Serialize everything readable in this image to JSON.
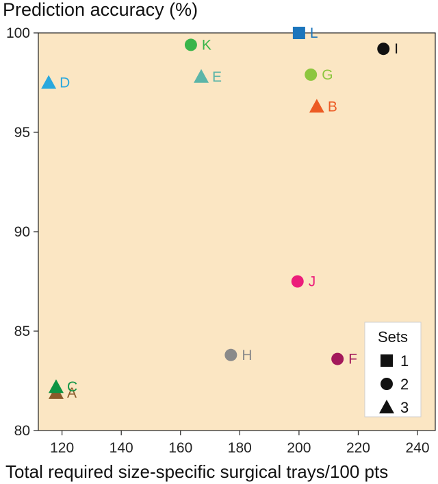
{
  "chart_data": {
    "type": "scatter",
    "ylabel": "Prediction accuracy (%)",
    "xlabel": "Total required size-specific surgical trays/100 pts",
    "xlim": [
      112,
      246
    ],
    "ylim": [
      80,
      100
    ],
    "xticks": [
      "120",
      "140",
      "160",
      "180",
      "200",
      "220",
      "240"
    ],
    "xtick_values": [
      120,
      140,
      160,
      180,
      200,
      220,
      240
    ],
    "yticks": [
      "80",
      "85",
      "90",
      "95",
      "100"
    ],
    "ytick_values": [
      80,
      85,
      90,
      95,
      100
    ],
    "background_color": "#fbe6c3",
    "grid": false,
    "legend": {
      "title": "Sets",
      "position": "bottom-right",
      "entries": [
        {
          "label": "1",
          "shape": "square"
        },
        {
          "label": "2",
          "shape": "circle"
        },
        {
          "label": "3",
          "shape": "triangle"
        }
      ]
    },
    "points": [
      {
        "label": "A",
        "x": 118,
        "y": 81.9,
        "set": 3,
        "shape": "triangle",
        "color": "#8b5a2b"
      },
      {
        "label": "B",
        "x": 206,
        "y": 96.3,
        "set": 3,
        "shape": "triangle",
        "color": "#ec5b24"
      },
      {
        "label": "C",
        "x": 118,
        "y": 82.2,
        "set": 3,
        "shape": "triangle",
        "color": "#0e9444"
      },
      {
        "label": "D",
        "x": 115.5,
        "y": 97.5,
        "set": 3,
        "shape": "triangle",
        "color": "#2aa8de"
      },
      {
        "label": "E",
        "x": 167,
        "y": 97.8,
        "set": 3,
        "shape": "triangle",
        "color": "#5bb5a8"
      },
      {
        "label": "F",
        "x": 213,
        "y": 83.6,
        "set": 2,
        "shape": "circle",
        "color": "#a3195b"
      },
      {
        "label": "G",
        "x": 204,
        "y": 97.9,
        "set": 2,
        "shape": "circle",
        "color": "#8dc63f"
      },
      {
        "label": "H",
        "x": 177,
        "y": 83.8,
        "set": 2,
        "shape": "circle",
        "color": "#8a8a8a"
      },
      {
        "label": "I",
        "x": 228.5,
        "y": 99.2,
        "set": 2,
        "shape": "circle",
        "color": "#111111"
      },
      {
        "label": "J",
        "x": 199.5,
        "y": 87.5,
        "set": 2,
        "shape": "circle",
        "color": "#ec1c7a"
      },
      {
        "label": "K",
        "x": 163.5,
        "y": 99.4,
        "set": 2,
        "shape": "circle",
        "color": "#39b54a"
      },
      {
        "label": "L",
        "x": 200,
        "y": 100,
        "set": 1,
        "shape": "square",
        "color": "#1b75bc"
      }
    ]
  }
}
